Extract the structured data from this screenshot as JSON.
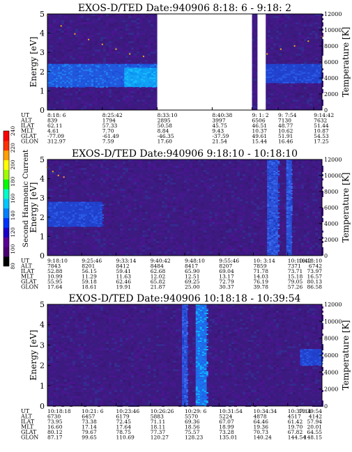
{
  "colorbar": {
    "label": "Second Harmonic Current",
    "ticks": [
      "80",
      "100",
      "120",
      "140",
      "160",
      "180",
      "200",
      "220",
      "240"
    ],
    "colors": [
      "#000000",
      "#4b0072",
      "#5a0094",
      "#1a00c8",
      "#0032ff",
      "#0080ff",
      "#00c8ff",
      "#00ffc8",
      "#00ff00",
      "#a0ff00",
      "#ffff00",
      "#ffa000",
      "#ff3000",
      "#ff0000"
    ]
  },
  "chart_data": [
    {
      "type": "heatmap",
      "title": "EXOS-D/TED   Date:940906  8:18: 6 - 9:18: 2",
      "ylabel": "Energy [eV]",
      "y2label": "Temperature [K]",
      "ylim": [
        0,
        5
      ],
      "y2lim": [
        0,
        12000
      ],
      "yticks": [
        "0",
        "1",
        "2",
        "3",
        "4",
        "5"
      ],
      "y2ticks": [
        "0",
        "2000",
        "4000",
        "6000",
        "8000",
        "10000",
        "12000"
      ],
      "x_fraction_range": [
        0,
        1
      ],
      "gaps": [
        [
          0.4,
          0.745
        ],
        [
          0.765,
          0.795
        ]
      ],
      "features": [
        {
          "x": [
            0.0,
            0.4
          ],
          "energy": [
            1.2,
            2.4
          ],
          "level": "mid-high"
        },
        {
          "x": [
            0.28,
            0.4
          ],
          "energy": [
            1.2,
            2.2
          ],
          "level": "high"
        },
        {
          "x": [
            0.795,
            1.0
          ],
          "energy": [
            1.4,
            2.4
          ],
          "level": "mid"
        }
      ],
      "temperature_points": [
        [
          0.0,
          11800
        ],
        [
          0.05,
          10500
        ],
        [
          0.1,
          9500
        ],
        [
          0.15,
          8800
        ],
        [
          0.2,
          8200
        ],
        [
          0.25,
          7600
        ],
        [
          0.3,
          7000
        ],
        [
          0.35,
          6700
        ],
        [
          0.8,
          7000
        ],
        [
          0.85,
          7600
        ],
        [
          0.9,
          8000
        ],
        [
          0.95,
          8600
        ],
        [
          1.0,
          9200
        ]
      ],
      "rows": [
        {
          "label": "UT",
          "values": [
            "8:18: 6",
            "8:25:42",
            "8:33:10",
            "8:40:38",
            "9: 1: 2",
            "9: 7:54",
            "9:14:42"
          ]
        },
        {
          "label": "ALT",
          "values": [
            "839",
            "1794",
            "2895",
            "3997",
            "6506",
            "7130",
            "7632"
          ]
        },
        {
          "label": "ILAT",
          "values": [
            "62.11",
            "57.33",
            "50.58",
            "45.75",
            "46.51",
            "48.77",
            "51.44"
          ]
        },
        {
          "label": "MLT",
          "values": [
            "4.61",
            "7.70",
            "8.84",
            "9.43",
            "10.37",
            "10.62",
            "10.87"
          ]
        },
        {
          "label": "GLAT",
          "values": [
            "-77.09",
            "-61.49",
            "-46.35",
            "-37.59",
            "49.61",
            "51.91",
            "54.53"
          ]
        },
        {
          "label": "GLON",
          "values": [
            "312.97",
            "7.59",
            "17.60",
            "21.54",
            "15.44",
            "16.46",
            "17.25"
          ]
        }
      ],
      "row_x": [
        0.0,
        0.2,
        0.4,
        0.6,
        0.745,
        0.84,
        0.97
      ]
    },
    {
      "type": "heatmap",
      "title": "EXOS-D/TED   Date:940906  9:18:10 - 10:18:10",
      "ylabel": "Energy [eV]",
      "y2label": "Temperature [K]",
      "ylim": [
        0,
        5
      ],
      "y2lim": [
        0,
        12000
      ],
      "yticks": [
        "0",
        "1",
        "2",
        "3",
        "4",
        "5"
      ],
      "y2ticks": [
        "0",
        "2000",
        "4000",
        "6000",
        "8000",
        "10000",
        "12000"
      ],
      "gaps": [],
      "features": [
        {
          "x": [
            0.0,
            0.2
          ],
          "energy": [
            1.5,
            2.8
          ],
          "level": "mid"
        },
        {
          "x": [
            0.8,
            0.84
          ],
          "energy": [
            0,
            5
          ],
          "level": "stripe"
        },
        {
          "x": [
            0.87,
            0.89
          ],
          "energy": [
            0,
            5
          ],
          "level": "stripe"
        }
      ],
      "temperature_points": [
        [
          0.0,
          11000
        ],
        [
          0.02,
          10500
        ],
        [
          0.04,
          10000
        ],
        [
          0.06,
          9800
        ]
      ],
      "rows": [
        {
          "label": "UT",
          "values": [
            "9:18:10",
            "9:25:46",
            "9:33:14",
            "9:40:42",
            "9:48:10",
            "9:55:46",
            "10: 3:14",
            "10:10:42",
            "10:18:10"
          ]
        },
        {
          "label": "ALT",
          "values": [
            "7843",
            "8201",
            "8412",
            "8484",
            "8417",
            "8207",
            "7859",
            "7371",
            "6742"
          ]
        },
        {
          "label": "ILAT",
          "values": [
            "52.88",
            "56.15",
            "59.41",
            "62.68",
            "65.90",
            "69.04",
            "71.78",
            "73.71",
            "73.97"
          ]
        },
        {
          "label": "MLT",
          "values": [
            "10.99",
            "11.29",
            "11.63",
            "12.02",
            "12.51",
            "13.17",
            "14.03",
            "15.18",
            "16.57"
          ]
        },
        {
          "label": "GLAT",
          "values": [
            "55.95",
            "59.18",
            "62.46",
            "65.82",
            "69.25",
            "72.79",
            "76.19",
            "79.05",
            "80.13"
          ]
        },
        {
          "label": "GLON",
          "values": [
            "17.64",
            "18.61",
            "19.91",
            "21.87",
            "25.00",
            "30.37",
            "39.78",
            "57.26",
            "86.58"
          ]
        }
      ],
      "row_x": [
        0.0,
        0.125,
        0.25,
        0.375,
        0.5,
        0.625,
        0.75,
        0.875,
        1.0
      ]
    },
    {
      "type": "heatmap",
      "title": "EXOS-D/TED   Date:940906  10:18:18 - 10:39:54",
      "ylabel": "Energy [eV]",
      "y2label": "Temperature [K]",
      "ylim": [
        0,
        5
      ],
      "y2lim": [
        0,
        12000
      ],
      "yticks": [
        "0",
        "1",
        "2",
        "3",
        "4",
        "5"
      ],
      "y2ticks": [
        "0",
        "2000",
        "4000",
        "6000",
        "8000",
        "10000",
        "12000"
      ],
      "gaps": [],
      "features": [
        {
          "x": [
            0.49,
            0.51
          ],
          "energy": [
            0,
            5
          ],
          "level": "stripe"
        },
        {
          "x": [
            0.54,
            0.58
          ],
          "energy": [
            0,
            5
          ],
          "level": "stripe-strong"
        },
        {
          "x": [
            0.92,
            1.0
          ],
          "energy": [
            2.0,
            2.8
          ],
          "level": "mid"
        }
      ],
      "temperature_points": [],
      "rows": [
        {
          "label": "UT",
          "values": [
            "10:18:18",
            "10:21: 6",
            "10:23:46",
            "10:26:26",
            "10:29: 6",
            "10:31:54",
            "10:34:34",
            "10:37:14",
            "10:39:54"
          ]
        },
        {
          "label": "ALT",
          "values": [
            "6730",
            "6457",
            "6179",
            "5883",
            "5570",
            "5224",
            "4878",
            "4517",
            "4142"
          ]
        },
        {
          "label": "ILAT",
          "values": [
            "73.95",
            "73.38",
            "72.45",
            "71.11",
            "69.36",
            "67.07",
            "64.46",
            "61.42",
            "57.94"
          ]
        },
        {
          "label": "MLT",
          "values": [
            "16.60",
            "17.14",
            "17.64",
            "18.11",
            "18.56",
            "18.99",
            "19.36",
            "19.70",
            "20.01"
          ]
        },
        {
          "label": "GLAT",
          "values": [
            "80.12",
            "79.67",
            "78.75",
            "77.37",
            "75.57",
            "73.28",
            "70.73",
            "67.82",
            "64.55"
          ]
        },
        {
          "label": "GLON",
          "values": [
            "87.17",
            "99.65",
            "110.69",
            "120.27",
            "128.23",
            "135.01",
            "140.24",
            "144.54",
            "148.15"
          ]
        }
      ],
      "row_x": [
        0.0,
        0.125,
        0.25,
        0.375,
        0.5,
        0.625,
        0.75,
        0.875,
        1.0
      ]
    }
  ]
}
